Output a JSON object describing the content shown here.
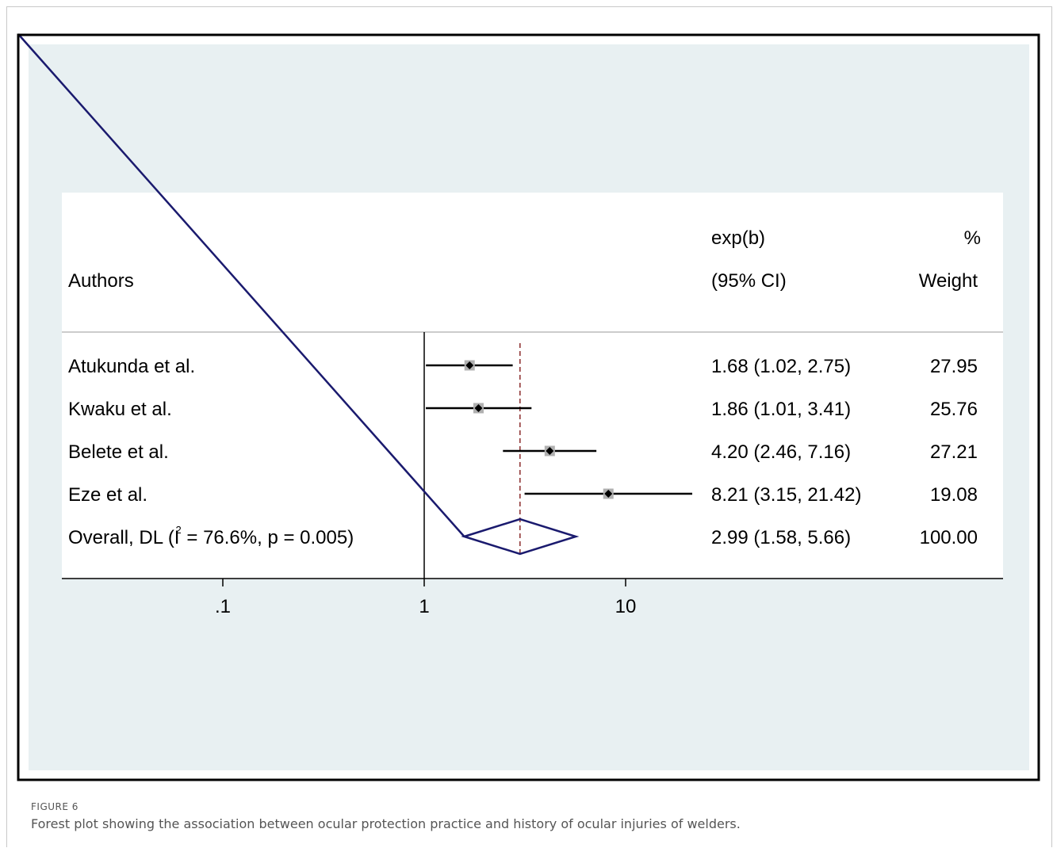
{
  "figure": {
    "label": "FIGURE 6",
    "caption": "Forest plot showing the association between ocular protection practice and history of ocular injuries of welders."
  },
  "chart_data": {
    "type": "forest",
    "scale": "log",
    "header": {
      "authors": "Authors",
      "effect_line1": "exp(b)",
      "effect_line2": "(95% CI)",
      "weight_line1": "%",
      "weight_line2": "Weight"
    },
    "studies": [
      {
        "label": "Atukunda et al.",
        "est": 1.68,
        "lo": 1.02,
        "hi": 2.75,
        "ci_text": "1.68 (1.02, 2.75)",
        "weight": "27.95"
      },
      {
        "label": "Kwaku et al.",
        "est": 1.86,
        "lo": 1.01,
        "hi": 3.41,
        "ci_text": "1.86 (1.01, 3.41)",
        "weight": "25.76"
      },
      {
        "label": "Belete et al.",
        "est": 4.2,
        "lo": 2.46,
        "hi": 7.16,
        "ci_text": "4.20 (2.46, 7.16)",
        "weight": "27.21"
      },
      {
        "label": "Eze et al.",
        "est": 8.21,
        "lo": 3.15,
        "hi": 21.42,
        "ci_text": "8.21 (3.15, 21.42)",
        "weight": "19.08"
      }
    ],
    "overall": {
      "label_prefix": "Overall, DL (I",
      "label_sup": "2",
      "label_suffix": " = 76.6%, p = 0.005)",
      "est": 2.99,
      "lo": 1.58,
      "hi": 5.66,
      "ci_text": "2.99 (1.58, 5.66)",
      "weight": "100.00"
    },
    "x_ticks": [
      {
        "value": 0.1,
        "label": ".1"
      },
      {
        "value": 1,
        "label": "1"
      },
      {
        "value": 10,
        "label": "10"
      }
    ],
    "colors": {
      "background": "#e8f0f2",
      "panel": "#ffffff",
      "diamond": "#1a1a6e",
      "diagonal": "#1a1a6e",
      "reference_dashed": "#8b2c2c",
      "weight_box": "#b0b0b0"
    }
  }
}
